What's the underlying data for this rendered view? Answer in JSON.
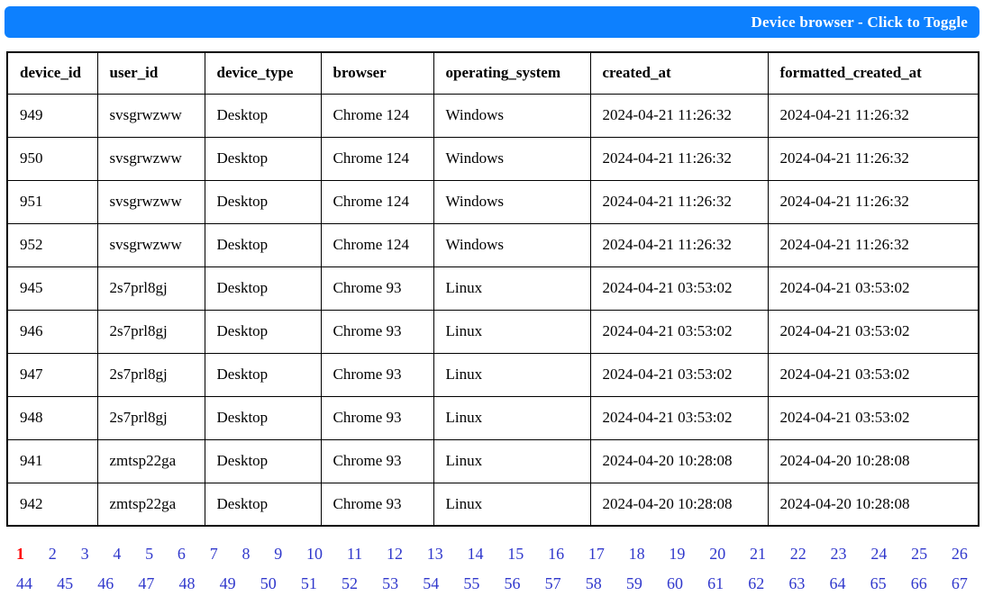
{
  "header": {
    "title": "Device browser - Click to Toggle",
    "bg_color": "#0d80fe",
    "text_color": "#ffffff"
  },
  "table": {
    "columns": [
      "device_id",
      "user_id",
      "device_type",
      "browser",
      "operating_system",
      "created_at",
      "formatted_created_at"
    ],
    "rows": [
      [
        "949",
        "svsgrwzww",
        "Desktop",
        "Chrome 124",
        "Windows",
        "2024-04-21 11:26:32",
        "2024-04-21 11:26:32"
      ],
      [
        "950",
        "svsgrwzww",
        "Desktop",
        "Chrome 124",
        "Windows",
        "2024-04-21 11:26:32",
        "2024-04-21 11:26:32"
      ],
      [
        "951",
        "svsgrwzww",
        "Desktop",
        "Chrome 124",
        "Windows",
        "2024-04-21 11:26:32",
        "2024-04-21 11:26:32"
      ],
      [
        "952",
        "svsgrwzww",
        "Desktop",
        "Chrome 124",
        "Windows",
        "2024-04-21 11:26:32",
        "2024-04-21 11:26:32"
      ],
      [
        "945",
        "2s7prl8gj",
        "Desktop",
        "Chrome 93",
        "Linux",
        "2024-04-21 03:53:02",
        "2024-04-21 03:53:02"
      ],
      [
        "946",
        "2s7prl8gj",
        "Desktop",
        "Chrome 93",
        "Linux",
        "2024-04-21 03:53:02",
        "2024-04-21 03:53:02"
      ],
      [
        "947",
        "2s7prl8gj",
        "Desktop",
        "Chrome 93",
        "Linux",
        "2024-04-21 03:53:02",
        "2024-04-21 03:53:02"
      ],
      [
        "948",
        "2s7prl8gj",
        "Desktop",
        "Chrome 93",
        "Linux",
        "2024-04-21 03:53:02",
        "2024-04-21 03:53:02"
      ],
      [
        "941",
        "zmtsp22ga",
        "Desktop",
        "Chrome 93",
        "Linux",
        "2024-04-20 10:28:08",
        "2024-04-20 10:28:08"
      ],
      [
        "942",
        "zmtsp22ga",
        "Desktop",
        "Chrome 93",
        "Linux",
        "2024-04-20 10:28:08",
        "2024-04-20 10:28:08"
      ]
    ]
  },
  "pagination": {
    "current_page": "1",
    "link_color": "#3038cc",
    "active_color": "#ff0000",
    "line1": [
      "1",
      "2",
      "3",
      "4",
      "5",
      "6",
      "7",
      "8",
      "9",
      "10",
      "11",
      "12",
      "13",
      "14",
      "15",
      "16",
      "17",
      "18",
      "19",
      "20",
      "21",
      "22",
      "23",
      "24",
      "25",
      "26"
    ],
    "line2": [
      "44",
      "45",
      "46",
      "47",
      "48",
      "49",
      "50",
      "51",
      "52",
      "53",
      "54",
      "55",
      "56",
      "57",
      "58",
      "59",
      "60",
      "61",
      "62",
      "63",
      "64",
      "65",
      "66",
      "67"
    ]
  }
}
